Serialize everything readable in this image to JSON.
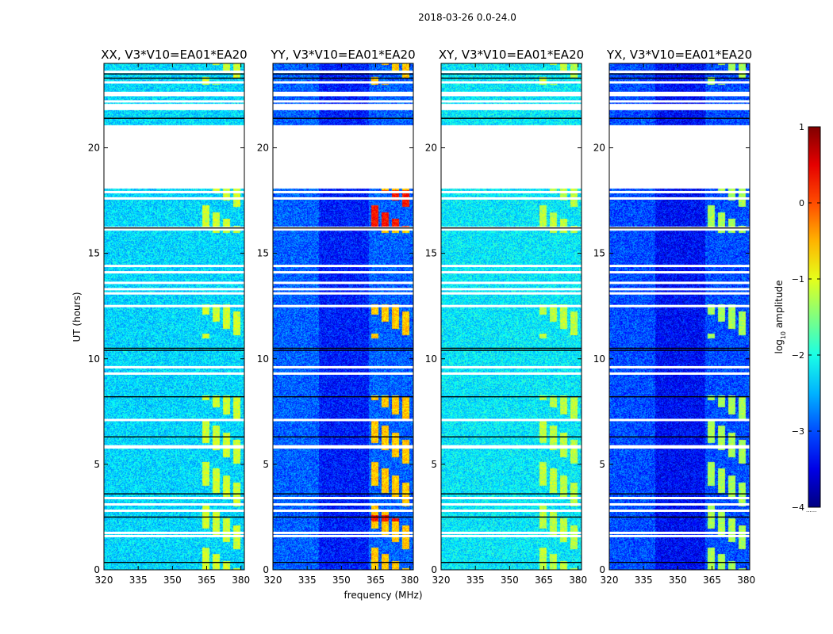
{
  "suptitle": "2018-03-26 0.0-24.0",
  "chart_data": {
    "type": "heatmap",
    "xlabel": "frequency (MHz)",
    "ylabel": "UT (hours)",
    "xlim": [
      320,
      381.5
    ],
    "ylim": [
      0,
      24
    ],
    "xticks": [
      320,
      335,
      350,
      365,
      380
    ],
    "yticks": [
      0,
      5,
      10,
      15,
      20
    ],
    "colorbar": {
      "label": "log10 amplitude",
      "label_main": "log",
      "label_sub": "10",
      "label_rest": " amplitude",
      "range": [
        -4,
        1
      ],
      "ticks": [
        -4,
        -3,
        -2,
        -1,
        0,
        1
      ],
      "colormap": "jet",
      "dots": "......"
    },
    "rfi_band_mhz": [
      363,
      381
    ],
    "blank_gaps_hours": [
      [
        18.1,
        21.1
      ],
      [
        16.1,
        16.3
      ],
      [
        21.8,
        22.1
      ]
    ],
    "dark_lines_hours": [
      0.35,
      2.5,
      10.4,
      10.5,
      16.2,
      21.4,
      23.3,
      23.5,
      3.6,
      6.3,
      8.2
    ],
    "white_lines_hours": [
      1.6,
      1.75,
      2.8,
      3.1,
      3.4,
      5.8,
      5.85,
      7.1,
      9.3,
      9.6,
      12.5,
      13.1,
      13.3,
      13.6,
      14.1,
      14.4,
      17.6,
      17.9,
      22.2,
      22.5,
      22.6,
      23.1,
      23.6
    ],
    "panels": [
      {
        "title": "XX, V3*V10=EA01*EA20",
        "bg": -2.3,
        "rfi": -1.1,
        "strong_hours": []
      },
      {
        "title": "YY, V3*V10=EA01*EA20",
        "bg": -2.9,
        "rfi": -0.6,
        "strong_hours": [
          [
            16.3,
            18.0
          ],
          [
            2.3,
            2.6
          ]
        ]
      },
      {
        "title": "XY, V3*V10=EA01*EA20",
        "bg": -2.2,
        "rfi": -1.2,
        "strong_hours": []
      },
      {
        "title": "YX, V3*V10=EA01*EA20",
        "bg": -3.0,
        "rfi": -1.3,
        "strong_hours": []
      }
    ]
  }
}
